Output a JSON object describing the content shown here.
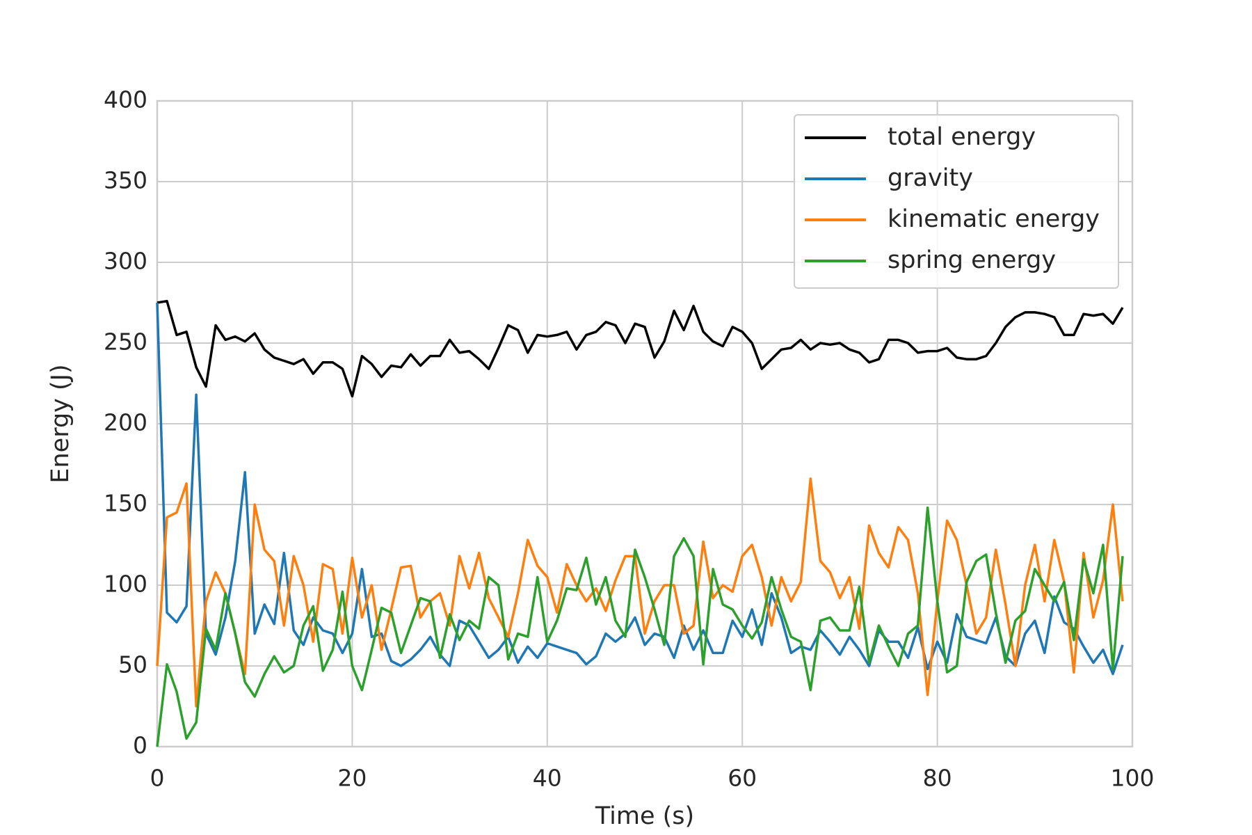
{
  "chart_data": {
    "type": "line",
    "xlabel": "Time (s)",
    "ylabel": "Energy (J)",
    "x": [
      0,
      1,
      2,
      3,
      4,
      5,
      6,
      7,
      8,
      9,
      10,
      11,
      12,
      13,
      14,
      15,
      16,
      17,
      18,
      19,
      20,
      21,
      22,
      23,
      24,
      25,
      26,
      27,
      28,
      29,
      30,
      31,
      32,
      33,
      34,
      35,
      36,
      37,
      38,
      39,
      40,
      41,
      42,
      43,
      44,
      45,
      46,
      47,
      48,
      49,
      50,
      51,
      52,
      53,
      54,
      55,
      56,
      57,
      58,
      59,
      60,
      61,
      62,
      63,
      64,
      65,
      66,
      67,
      68,
      69,
      70,
      71,
      72,
      73,
      74,
      75,
      76,
      77,
      78,
      79,
      80,
      81,
      82,
      83,
      84,
      85,
      86,
      87,
      88,
      89,
      90,
      91,
      92,
      93,
      94,
      95,
      96,
      97,
      98,
      99
    ],
    "series": [
      {
        "name": "total energy",
        "color": "#000000",
        "values": [
          275,
          276,
          255,
          257,
          235,
          223,
          261,
          252,
          254,
          251,
          256,
          246,
          241,
          239,
          237,
          240,
          231,
          238,
          238,
          234,
          217,
          242,
          237,
          229,
          236,
          235,
          243,
          236,
          242,
          242,
          252,
          244,
          245,
          240,
          234,
          247,
          261,
          258,
          244,
          255,
          254,
          255,
          257,
          246,
          255,
          257,
          263,
          261,
          250,
          262,
          260,
          241,
          251,
          270,
          258,
          273,
          257,
          251,
          248,
          260,
          257,
          250,
          234,
          240,
          246,
          247,
          252,
          246,
          250,
          249,
          250,
          246,
          244,
          238,
          240,
          252,
          252,
          250,
          244,
          245,
          245,
          247,
          241,
          240,
          240,
          242,
          250,
          260,
          266,
          269,
          269,
          268,
          266,
          255,
          255,
          268,
          267,
          268,
          262,
          272
        ]
      },
      {
        "name": "gravity",
        "color": "#1f77b4",
        "values": [
          275,
          83,
          77,
          87,
          218,
          70,
          57,
          80,
          115,
          170,
          70,
          88,
          76,
          120,
          72,
          63,
          80,
          72,
          70,
          58,
          70,
          110,
          68,
          70,
          53,
          50,
          54,
          60,
          68,
          57,
          50,
          78,
          75,
          65,
          55,
          60,
          68,
          52,
          62,
          55,
          64,
          62,
          60,
          58,
          51,
          56,
          70,
          65,
          70,
          80,
          63,
          70,
          68,
          55,
          75,
          60,
          72,
          58,
          58,
          78,
          68,
          85,
          63,
          95,
          80,
          58,
          62,
          60,
          72,
          65,
          57,
          68,
          60,
          50,
          72,
          65,
          65,
          55,
          74,
          48,
          65,
          52,
          82,
          68,
          66,
          64,
          80,
          56,
          50,
          70,
          78,
          58,
          93,
          77,
          73,
          62,
          52,
          60,
          45,
          63
        ]
      },
      {
        "name": "kinematic energy",
        "color": "#ff7f0e",
        "values": [
          50,
          142,
          145,
          163,
          25,
          90,
          108,
          95,
          70,
          45,
          150,
          122,
          115,
          75,
          118,
          100,
          65,
          113,
          110,
          70,
          117,
          80,
          100,
          60,
          85,
          111,
          112,
          80,
          90,
          95,
          75,
          118,
          98,
          120,
          92,
          80,
          68,
          95,
          128,
          112,
          105,
          83,
          113,
          100,
          90,
          98,
          84,
          103,
          118,
          118,
          70,
          90,
          100,
          100,
          70,
          75,
          127,
          92,
          100,
          96,
          118,
          125,
          105,
          75,
          105,
          90,
          102,
          166,
          115,
          108,
          92,
          105,
          73,
          137,
          120,
          111,
          136,
          128,
          95,
          32,
          90,
          140,
          128,
          100,
          70,
          80,
          122,
          88,
          50,
          100,
          125,
          90,
          128,
          102,
          46,
          120,
          80,
          103,
          150,
          90
        ]
      },
      {
        "name": "spring energy",
        "color": "#2ca02c",
        "values": [
          0,
          51,
          34,
          5,
          15,
          73,
          60,
          95,
          70,
          40,
          31,
          45,
          56,
          46,
          50,
          75,
          87,
          47,
          60,
          96,
          50,
          35,
          60,
          86,
          83,
          58,
          75,
          92,
          90,
          55,
          82,
          66,
          78,
          73,
          105,
          100,
          54,
          70,
          68,
          105,
          65,
          78,
          98,
          97,
          117,
          88,
          105,
          78,
          68,
          122,
          105,
          85,
          63,
          118,
          129,
          118,
          51,
          110,
          88,
          85,
          75,
          67,
          77,
          105,
          85,
          68,
          65,
          35,
          78,
          80,
          72,
          72,
          99,
          52,
          75,
          62,
          50,
          70,
          75,
          148,
          90,
          46,
          50,
          102,
          115,
          119,
          83,
          52,
          78,
          84,
          110,
          100,
          90,
          102,
          66,
          116,
          95,
          125,
          48,
          118
        ]
      }
    ],
    "xlim": [
      0,
      100
    ],
    "xticks": [
      0,
      20,
      40,
      60,
      80,
      100
    ],
    "ylim": [
      0,
      400
    ],
    "yticks": [
      0,
      50,
      100,
      150,
      200,
      250,
      300,
      350,
      400
    ],
    "grid": true,
    "legend": "upper right"
  }
}
